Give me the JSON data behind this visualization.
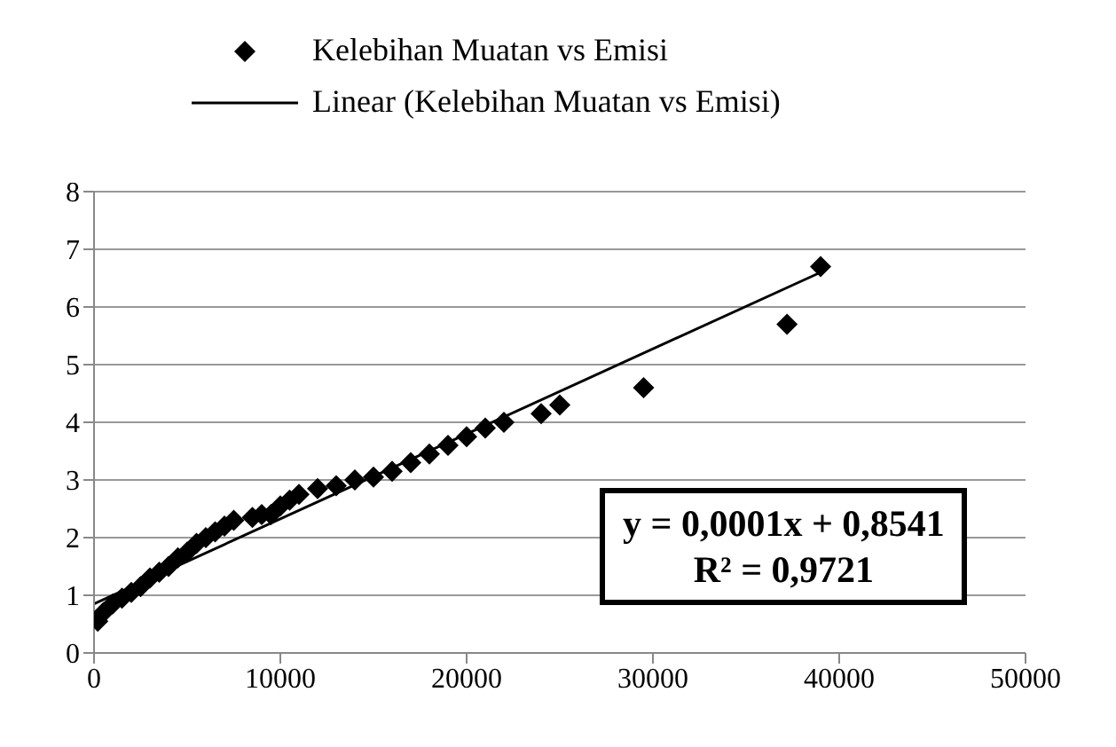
{
  "chart_data": {
    "type": "scatter",
    "series": [
      {
        "name": "Kelebihan Muatan vs Emisi",
        "color": "#000000",
        "marker": "diamond",
        "x": [
          200,
          500,
          1000,
          1500,
          2000,
          2500,
          3000,
          3500,
          4000,
          4500,
          5000,
          5500,
          6000,
          6500,
          7000,
          7500,
          8500,
          9000,
          9500,
          10000,
          10500,
          11000,
          12000,
          13000,
          14000,
          15000,
          16000,
          17000,
          18000,
          19000,
          20000,
          21000,
          22000,
          24000,
          25000,
          29500,
          37200,
          39000
        ],
        "values": [
          0.55,
          0.7,
          0.85,
          0.95,
          1.05,
          1.15,
          1.3,
          1.4,
          1.5,
          1.65,
          1.75,
          1.9,
          2.0,
          2.1,
          2.2,
          2.3,
          2.35,
          2.4,
          2.4,
          2.55,
          2.65,
          2.75,
          2.85,
          2.9,
          3.0,
          3.05,
          3.15,
          3.3,
          3.45,
          3.6,
          3.75,
          3.9,
          4.0,
          4.15,
          4.3,
          4.6,
          5.7,
          6.7
        ]
      },
      {
        "name": "Linear (Kelebihan Muatan vs Emisi)",
        "type": "line",
        "color": "#000000",
        "marker": "none",
        "line_style": "solid",
        "x": [
          0,
          39000
        ],
        "values": [
          0.85,
          6.6
        ]
      }
    ],
    "xlim": [
      0,
      50000
    ],
    "xticks": [
      0,
      10000,
      20000,
      30000,
      40000,
      50000
    ],
    "ylim": [
      0,
      8
    ],
    "yticks": [
      0,
      1,
      2,
      3,
      4,
      5,
      6,
      7,
      8
    ],
    "grid": "y",
    "legend": "top",
    "annotations": [
      "y = 0,0001x + 0,8541",
      "R² = 0,9721"
    ]
  }
}
